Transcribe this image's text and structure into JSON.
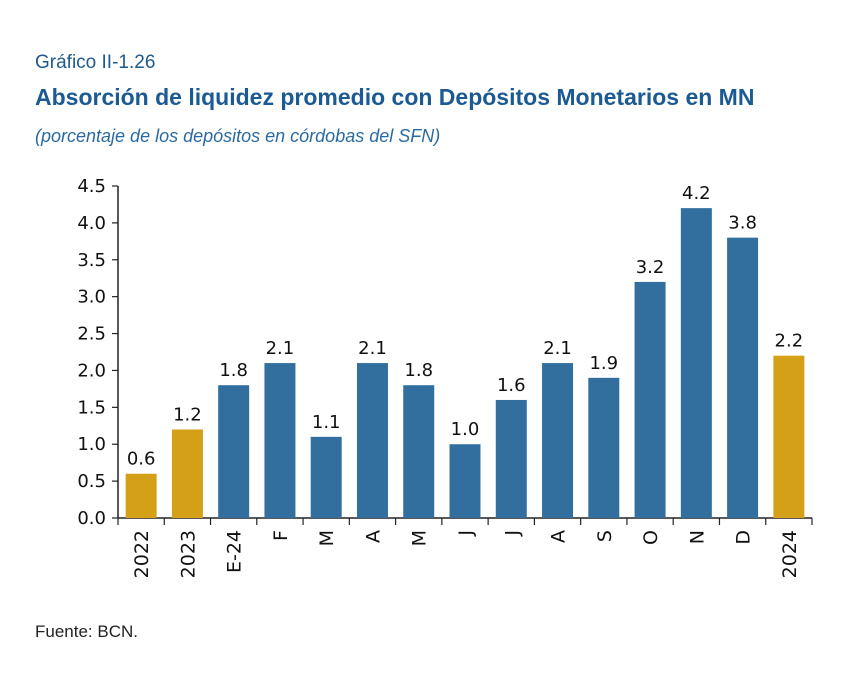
{
  "header": {
    "label": "Gráfico II-1.26",
    "title": "Absorción de liquidez promedio con Depósitos Monetarios en MN",
    "subtitle": "(porcentaje de los depósitos en córdobas del SFN)"
  },
  "footer": {
    "source": "Fuente: BCN."
  },
  "colors": {
    "annual": "#d4a017",
    "monthly": "#336f9e",
    "title": "#1c5a93"
  },
  "chart_data": {
    "type": "bar",
    "categories": [
      "2022",
      "2023",
      "E-24",
      "F",
      "M",
      "A",
      "M",
      "J",
      "J",
      "A",
      "S",
      "O",
      "N",
      "D",
      "2024"
    ],
    "values": [
      0.6,
      1.2,
      1.8,
      2.1,
      1.1,
      2.1,
      1.8,
      1.0,
      1.6,
      2.1,
      1.9,
      3.2,
      4.2,
      3.8,
      2.2
    ],
    "data_labels": [
      "0.6",
      "1.2",
      "1.8",
      "2.1",
      "1.1",
      "2.1",
      "1.8",
      "1.0",
      "1.6",
      "2.1",
      "1.9",
      "3.2",
      "4.2",
      "3.8",
      "2.2"
    ],
    "bar_kind": [
      "annual",
      "annual",
      "monthly",
      "monthly",
      "monthly",
      "monthly",
      "monthly",
      "monthly",
      "monthly",
      "monthly",
      "monthly",
      "monthly",
      "monthly",
      "monthly",
      "annual"
    ],
    "yticks": [
      "0.0",
      "0.5",
      "1.0",
      "1.5",
      "2.0",
      "2.5",
      "3.0",
      "3.5",
      "4.0",
      "4.5"
    ],
    "ylim": [
      0,
      4.5
    ],
    "grid": false,
    "legend": "none"
  }
}
